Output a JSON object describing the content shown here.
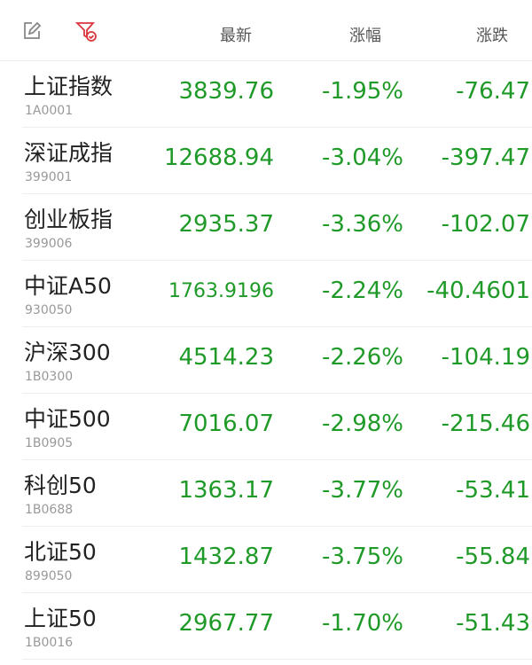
{
  "header": {
    "columns": [
      "最新",
      "涨幅",
      "涨跌"
    ],
    "edit_icon": "edit-icon",
    "filter_icon": "filter-check-icon"
  },
  "colors": {
    "down": "#1f9a28",
    "filter": "#d9363e"
  },
  "rows": [
    {
      "name": "上证指数",
      "code": "1A0001",
      "latest": "3839.76",
      "pct": "-1.95%",
      "change": "-76.47"
    },
    {
      "name": "深证成指",
      "code": "399001",
      "latest": "12688.94",
      "pct": "-3.04%",
      "change": "-397.47"
    },
    {
      "name": "创业板指",
      "code": "399006",
      "latest": "2935.37",
      "pct": "-3.36%",
      "change": "-102.07"
    },
    {
      "name": "中证A50",
      "code": "930050",
      "latest": "1763.9196",
      "pct": "-2.24%",
      "change": "-40.4601"
    },
    {
      "name": "沪深300",
      "code": "1B0300",
      "latest": "4514.23",
      "pct": "-2.26%",
      "change": "-104.19"
    },
    {
      "name": "中证500",
      "code": "1B0905",
      "latest": "7016.07",
      "pct": "-2.98%",
      "change": "-215.46"
    },
    {
      "name": "科创50",
      "code": "1B0688",
      "latest": "1363.17",
      "pct": "-3.77%",
      "change": "-53.41"
    },
    {
      "name": "北证50",
      "code": "899050",
      "latest": "1432.87",
      "pct": "-3.75%",
      "change": "-55.84"
    },
    {
      "name": "上证50",
      "code": "1B0016",
      "latest": "2967.77",
      "pct": "-1.70%",
      "change": "-51.43"
    }
  ]
}
